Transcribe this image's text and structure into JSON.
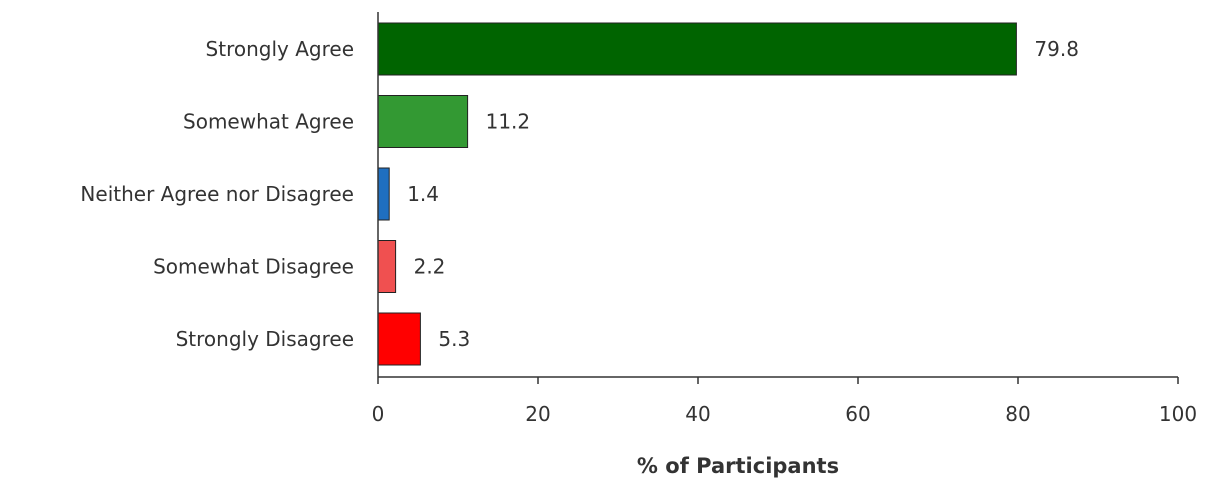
{
  "chart_data": {
    "type": "bar",
    "orientation": "horizontal",
    "title": "",
    "xlabel": "% of Participants",
    "ylabel": "",
    "xlim": [
      0,
      100
    ],
    "xticks": [
      0,
      20,
      40,
      60,
      80,
      100
    ],
    "grid": false,
    "legend": "none",
    "categories": [
      "Strongly Agree",
      "Somewhat Agree",
      "Neither Agree nor Disagree",
      "Somewhat Disagree",
      "Strongly Disagree"
    ],
    "values": [
      79.8,
      11.2,
      1.4,
      2.2,
      5.3
    ],
    "value_labels": [
      "79.8",
      "11.2",
      "1.4",
      "2.2",
      "5.3"
    ],
    "colors": [
      "#006400",
      "#339933",
      "#1f6fc0",
      "#f05050",
      "#ff0000"
    ],
    "axis_color": "#333333"
  }
}
